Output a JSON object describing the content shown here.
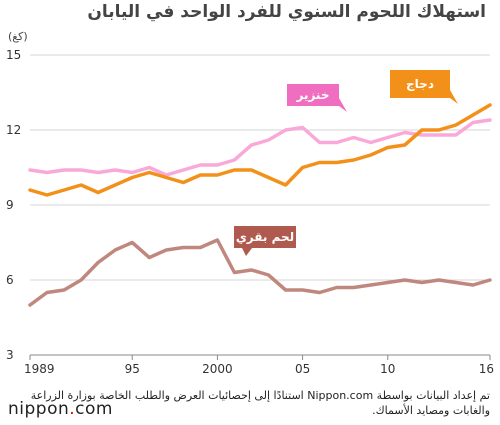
{
  "chart_data": {
    "type": "line",
    "title": "استهلاك اللحوم السنوي للفرد الواحد في اليابان",
    "ylabel": "(كغ)",
    "xlabel": "",
    "ylim": [
      3,
      15
    ],
    "xlim": [
      1989,
      2016
    ],
    "yticks": [
      "3",
      "6",
      "9",
      "12",
      "15"
    ],
    "xticks": [
      {
        "x": 1989,
        "label": "1989"
      },
      {
        "x": 1995,
        "label": "95"
      },
      {
        "x": 2000,
        "label": "2000"
      },
      {
        "x": 2005,
        "label": "05"
      },
      {
        "x": 2010,
        "label": "10"
      },
      {
        "x": 2016,
        "label": "16"
      }
    ],
    "grid": true,
    "x": [
      1989,
      1990,
      1991,
      1992,
      1993,
      1994,
      1995,
      1996,
      1997,
      1998,
      1999,
      2000,
      2001,
      2002,
      2003,
      2004,
      2005,
      2006,
      2007,
      2008,
      2009,
      2010,
      2011,
      2012,
      2013,
      2014,
      2015,
      2016
    ],
    "series": [
      {
        "name": "خنزير",
        "color": "#f9a9d8",
        "values": [
          10.4,
          10.3,
          10.4,
          10.4,
          10.3,
          10.4,
          10.3,
          10.5,
          10.2,
          10.4,
          10.6,
          10.6,
          10.8,
          11.4,
          11.6,
          12.0,
          12.1,
          11.5,
          11.5,
          11.7,
          11.5,
          11.7,
          11.9,
          11.8,
          11.8,
          11.8,
          12.3,
          12.4
        ]
      },
      {
        "name": "دجاج",
        "color": "#f39019",
        "values": [
          9.6,
          9.4,
          9.6,
          9.8,
          9.5,
          9.8,
          10.1,
          10.3,
          10.1,
          9.9,
          10.2,
          10.2,
          10.4,
          10.4,
          10.1,
          9.8,
          10.5,
          10.7,
          10.7,
          10.8,
          11.0,
          11.3,
          11.4,
          12.0,
          12.0,
          12.2,
          12.6,
          13.0
        ]
      },
      {
        "name": "لحم بقري",
        "color": "#c0877f",
        "values": [
          5.0,
          5.5,
          5.6,
          6.0,
          6.7,
          7.2,
          7.5,
          6.9,
          7.2,
          7.3,
          7.3,
          7.6,
          6.3,
          6.4,
          6.2,
          5.6,
          5.6,
          5.5,
          5.7,
          5.7,
          5.8,
          5.9,
          6.0,
          5.9,
          6.0,
          5.9,
          5.8,
          6.0
        ]
      }
    ],
    "labels": [
      {
        "series": "خنزير",
        "text": "خنزير",
        "bg": "#f06ec0"
      },
      {
        "series": "دجاج",
        "text": "دجاج",
        "bg": "#f39019"
      },
      {
        "series": "لحم بقري",
        "text": "لحم بقري",
        "bg": "#b05a4f"
      }
    ]
  },
  "footer": {
    "note": "تم إعداد البيانات بواسطة Nippon.com استنادًا إلى إحصائيات العرض والطلب الخاصة بوزارة الزراعة والغابات ومصايد الأسماك.",
    "logo_left": "nippon",
    "logo_dot": ".",
    "logo_right": "com"
  }
}
